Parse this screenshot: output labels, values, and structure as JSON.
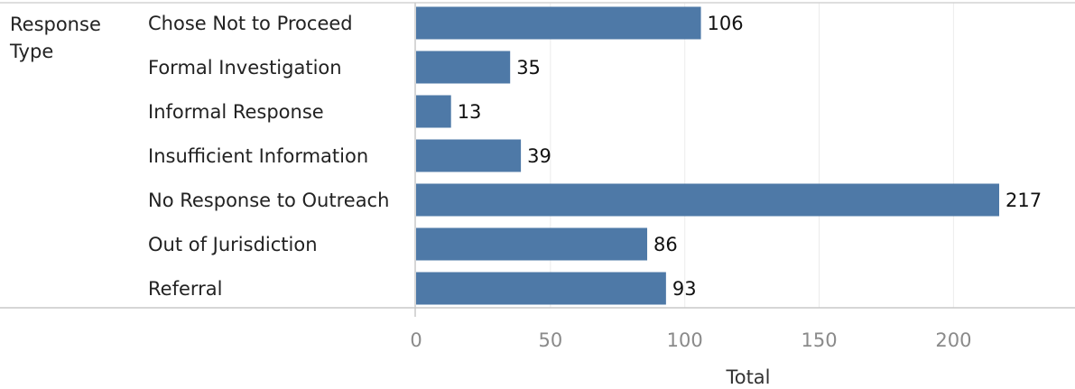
{
  "chart_data": {
    "type": "bar",
    "orientation": "horizontal",
    "row_header": [
      "Response",
      "Type"
    ],
    "categories": [
      "Chose Not to Proceed",
      "Formal Investigation",
      "Informal Response",
      "Insufficient Information",
      "No Response to Outreach",
      "Out of Jurisdiction",
      "Referral"
    ],
    "values": [
      106,
      35,
      13,
      39,
      217,
      86,
      93
    ],
    "value_labels": [
      "106",
      "35",
      "13",
      "39",
      "217",
      "86",
      "93"
    ],
    "xlabel": "Total",
    "xlim": [
      0,
      245
    ],
    "xticks": [
      0,
      50,
      100,
      150,
      200
    ],
    "xtick_labels": [
      "0",
      "50",
      "100",
      "150",
      "200"
    ],
    "grid": "vertical",
    "bar_color": "#4e79a7"
  }
}
